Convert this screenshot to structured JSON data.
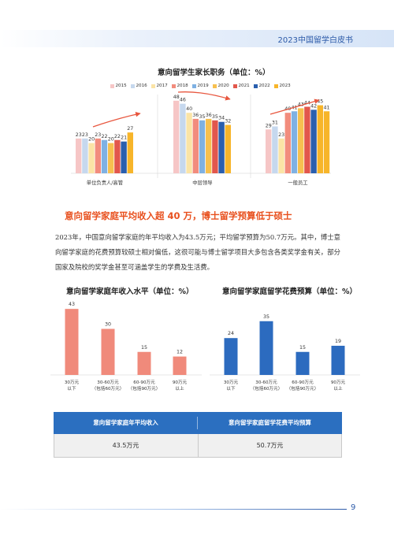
{
  "header": {
    "title": "2023中国留学白皮书"
  },
  "chart1": {
    "title": "意向留学生家长职务（单位：%）",
    "legend": [
      {
        "label": "2015",
        "color": "#f6c6c6"
      },
      {
        "label": "2016",
        "color": "#c6d8ee"
      },
      {
        "label": "2017",
        "color": "#fbe4a6"
      },
      {
        "label": "2018",
        "color": "#f28c7d"
      },
      {
        "label": "2019",
        "color": "#7fb1e3"
      },
      {
        "label": "2020",
        "color": "#f7c04f"
      },
      {
        "label": "2021",
        "color": "#e2574c"
      },
      {
        "label": "2022",
        "color": "#2a5fae"
      },
      {
        "label": "2023",
        "color": "#f7b52a"
      }
    ]
  },
  "chart2": {
    "title": "意向留学家庭年收入水平（单位：%）"
  },
  "chart3": {
    "title": "意向留学家庭留学花费预算（单位：%）"
  },
  "section": {
    "heading": "意向留学家庭平均收入超 40 万，博士留学预算低于硕士",
    "paragraph": "2023年，中国意向留学家庭的年平均收入为43.5万元；平均留学预算为50.7万元。其中，博士意向留学家庭的花费预算较硕士相对偏低，这很可能与博士留学项目大多包含各类奖学金有关，部分国家及院校的奖学金甚至可涵盖学生的学费及生活费。"
  },
  "summary_table": {
    "headers": [
      "意向留学家庭年平均收入",
      "意向留学家庭留学花费平均预算"
    ],
    "values": [
      "43.5万元",
      "50.7万元"
    ]
  },
  "footer": {
    "page_number": "9"
  },
  "chart_data": [
    {
      "type": "bar",
      "title": "意向留学生家长职务（单位：%）",
      "categories": [
        "单位负责人/高管",
        "中层领导",
        "一般员工"
      ],
      "series": [
        {
          "name": "2015",
          "values": [
            23,
            48,
            29
          ]
        },
        {
          "name": "2016",
          "values": [
            23,
            46,
            31
          ]
        },
        {
          "name": "2017",
          "values": [
            20,
            40,
            23
          ]
        },
        {
          "name": "2018",
          "values": [
            23,
            36,
            40
          ]
        },
        {
          "name": "2019",
          "values": [
            22,
            35,
            41
          ]
        },
        {
          "name": "2020",
          "values": [
            20,
            36,
            43
          ]
        },
        {
          "name": "2021",
          "values": [
            22,
            35,
            44
          ]
        },
        {
          "name": "2022",
          "values": [
            21,
            34,
            42
          ]
        },
        {
          "name": "2023",
          "values": [
            27,
            32,
            45
          ]
        }
      ],
      "extra_bar": {
        "category": "一般员工",
        "value": 41,
        "color": "#f7b52a"
      },
      "legend_position": "top",
      "ylim": [
        0,
        55
      ],
      "grid": false
    },
    {
      "type": "bar",
      "title": "意向留学家庭年收入水平（单位：%）",
      "categories": [
        [
          "30万元",
          "以下"
        ],
        [
          "30-60万元",
          "（包括60万元）"
        ],
        [
          "60-90万元",
          "（包括90万元）"
        ],
        [
          "90万元",
          "以上"
        ]
      ],
      "values": [
        43,
        30,
        15,
        12
      ],
      "color": "#f08a7b",
      "ylim": [
        0,
        45
      ],
      "grid": false
    },
    {
      "type": "bar",
      "title": "意向留学家庭留学花费预算（单位：%）",
      "categories": [
        [
          "30万元",
          "以下"
        ],
        [
          "30-60万元",
          "（包括60万元）"
        ],
        [
          "60-90万元",
          "（包括90万元）"
        ],
        [
          "90万元",
          "以上"
        ]
      ],
      "values": [
        24,
        35,
        15,
        19
      ],
      "color": "#2c6bbf",
      "ylim": [
        0,
        45
      ],
      "grid": false
    }
  ]
}
